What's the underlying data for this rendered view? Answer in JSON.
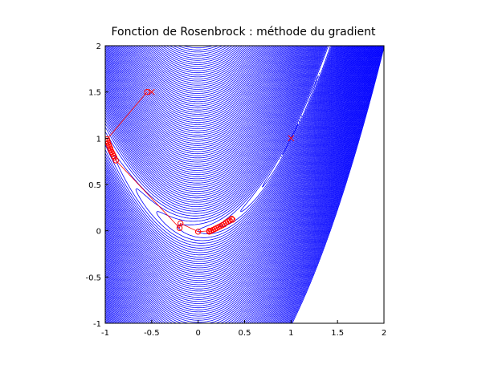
{
  "chart_data": {
    "type": "line",
    "title": "Fonction de Rosenbrock : méthode du gradient",
    "xlabel": "",
    "ylabel": "",
    "xlim": [
      -1,
      2
    ],
    "ylim": [
      -1,
      2
    ],
    "xticks": [
      -1,
      -0.5,
      0,
      0.5,
      1,
      1.5,
      2
    ],
    "yticks": [
      -1,
      -0.5,
      0,
      0.5,
      1,
      1.5,
      2
    ],
    "xtick_labels": [
      "-1",
      "-0.5",
      "0",
      "0.5",
      "1",
      "1.5",
      "2"
    ],
    "ytick_labels": [
      "-1",
      "-0.5",
      "0",
      "0.5",
      "1",
      "1.5",
      "2"
    ],
    "grid": false,
    "legend": "none",
    "contour": {
      "function": "Rosenbrock (1-x)^2 + 100*(y-x^2)^2",
      "color": "#0000ff",
      "levels": [
        0.02,
        0.1,
        0.3,
        0.6,
        1,
        1.5,
        2.1,
        2.8,
        3.6,
        4.5,
        5.5,
        6.6,
        7.8,
        9.1,
        10.5,
        12,
        13.6,
        15.3,
        17.1,
        19,
        21,
        23.1,
        25.3,
        27.6,
        30,
        32.5,
        35.1,
        37.8,
        40.6,
        43.5,
        46.5,
        49.6,
        52.8,
        56.1,
        59.5,
        63,
        66.6,
        70.3,
        74.1,
        78,
        82,
        86.1,
        90.3,
        94.6,
        99,
        103.5,
        108.1,
        112.8,
        117.6,
        122.5,
        127.5,
        132.6,
        137.8,
        143.1,
        148.5,
        154,
        159.6,
        165.3,
        171.1,
        177,
        183,
        189.1,
        195.3,
        201.6,
        208,
        214.5,
        221.1,
        227.8,
        234.6,
        241.5,
        248.5,
        255.6,
        262.8,
        270.1,
        277.5,
        285,
        292.6,
        300.3,
        308.1,
        316,
        324,
        332.1,
        340.3,
        348.6,
        357,
        365.5,
        374.1,
        382.8,
        391.6,
        400.5,
        409.5
      ]
    },
    "series": [
      {
        "color": "#ff0000",
        "marker": "circle",
        "line": "solid",
        "points": [
          [
            -0.55,
            1.5
          ],
          [
            -0.98,
            0.99
          ],
          [
            -0.975,
            0.97
          ],
          [
            -0.97,
            0.95
          ],
          [
            -0.96,
            0.93
          ],
          [
            -0.955,
            0.91
          ],
          [
            -0.945,
            0.89
          ],
          [
            -0.94,
            0.87
          ],
          [
            -0.93,
            0.85
          ],
          [
            -0.92,
            0.83
          ],
          [
            -0.91,
            0.81
          ],
          [
            -0.9,
            0.79
          ],
          [
            -0.885,
            0.76
          ],
          [
            -0.2,
            0.03
          ],
          [
            -0.19,
            0.08
          ],
          [
            0.0,
            -0.01
          ],
          [
            0.12,
            0.0
          ],
          [
            0.12,
            -0.01
          ],
          [
            0.14,
            0.0
          ],
          [
            0.16,
            0.01
          ],
          [
            0.18,
            0.02
          ],
          [
            0.2,
            0.03
          ],
          [
            0.22,
            0.04
          ],
          [
            0.24,
            0.05
          ],
          [
            0.26,
            0.06
          ],
          [
            0.28,
            0.07
          ],
          [
            0.3,
            0.09
          ],
          [
            0.32,
            0.1
          ],
          [
            0.34,
            0.11
          ],
          [
            0.36,
            0.13
          ],
          [
            0.37,
            0.12
          ]
        ]
      }
    ],
    "markers": [
      {
        "label": "",
        "marker": "x",
        "color": "#ff0000",
        "x": 1,
        "y": 1
      },
      {
        "label": "",
        "marker": "x",
        "color": "#ff0000",
        "x": -0.5,
        "y": 1.5
      }
    ]
  }
}
